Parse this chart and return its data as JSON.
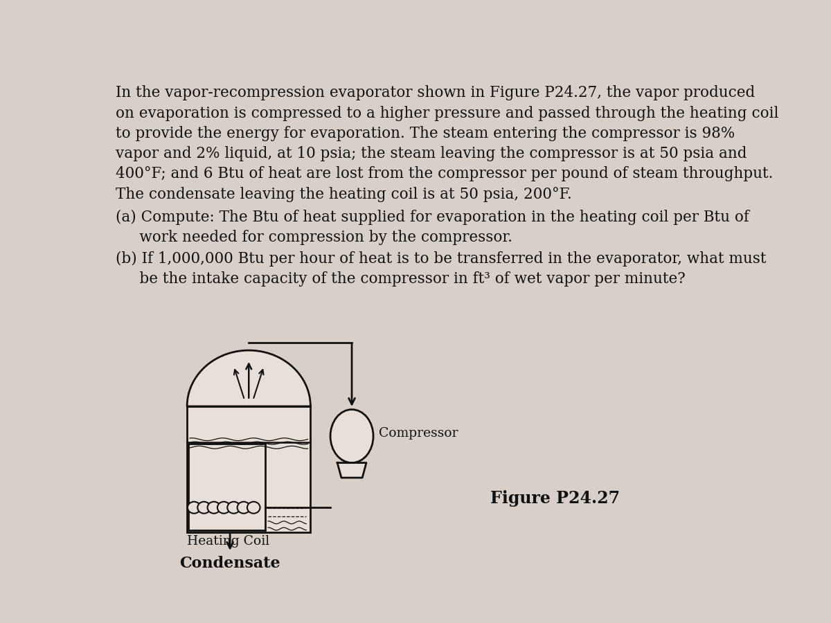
{
  "background_color": "#d8d0c8",
  "vessel_color": "#e8e0d8",
  "text_color": "#111111",
  "line_color": "#111111",
  "paragraph1_lines": [
    "In the vapor-recompression evaporator shown in Figure P24.27, the vapor produced",
    "on evaporation is compressed to a higher pressure and passed through the heating coil",
    "to provide the energy for evaporation. The steam entering the compressor is 98%",
    "vapor and 2% liquid, at 10 psia; the steam leaving the compressor is at 50 psia and",
    "400°F; and 6 Btu of heat are lost from the compressor per pound of steam throughput.",
    "The condensate leaving the heating coil is at 50 psia, 200°F."
  ],
  "paragraph2a_lines": [
    "(a) Compute: The Btu of heat supplied for evaporation in the heating coil per Btu of",
    "     work needed for compression by the compressor."
  ],
  "paragraph2b_lines": [
    "(b) If 1,000,000 Btu per hour of heat is to be transferred in the evaporator, what must",
    "     be the intake capacity of the compressor in ft³ of wet vapor per minute?"
  ],
  "label_compressor": "Compressor",
  "label_heating_coil": "Heating Coil",
  "label_condensate": "Condensate",
  "label_figure": "Figure P24.27",
  "font_size_body": 15.5,
  "font_size_label": 13.5,
  "font_size_figure": 17,
  "font_size_condensate": 16
}
